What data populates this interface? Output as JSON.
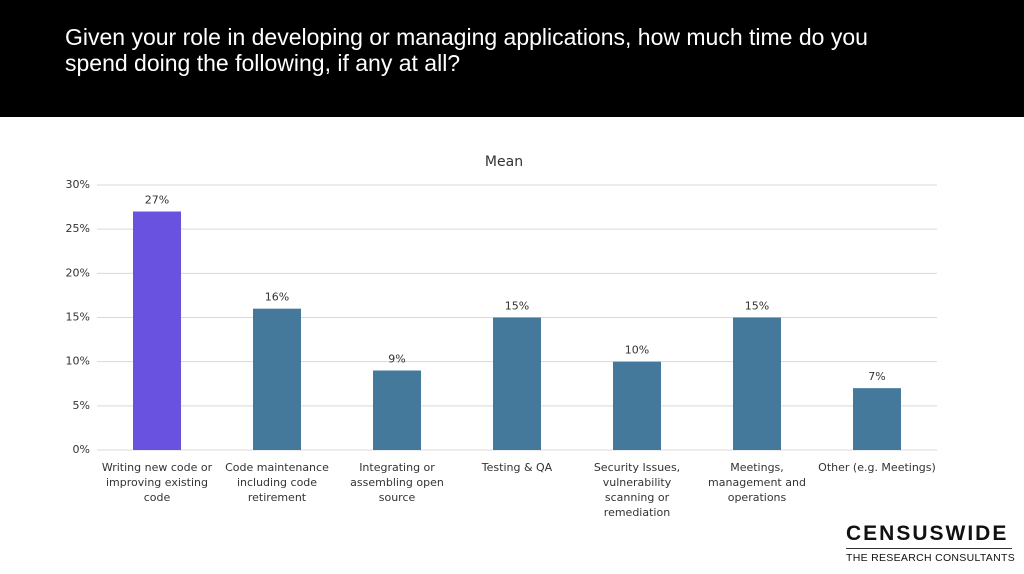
{
  "header": {
    "title": "Given your role in developing or managing applications, how much time do you spend doing the following, if any at all?"
  },
  "chart_data": {
    "type": "bar",
    "title": "Mean",
    "categories": [
      "Writing new code or improving existing code",
      "Code maintenance including code retirement",
      "Integrating or assembling open source",
      "Testing & QA",
      "Security Issues, vulnerability scanning or remediation",
      "Meetings, management and operations",
      "Other (e.g. Meetings)"
    ],
    "values": [
      27,
      16,
      9,
      15,
      10,
      15,
      7
    ],
    "value_labels": [
      "27%",
      "16%",
      "9%",
      "15%",
      "10%",
      "15%",
      "7%"
    ],
    "colors": [
      "#6a52e0",
      "#45799c",
      "#45799c",
      "#45799c",
      "#45799c",
      "#45799c",
      "#45799c"
    ],
    "ylim": [
      0,
      30
    ],
    "yticks": [
      {
        "value": 0,
        "label": "0%"
      },
      {
        "value": 5,
        "label": "5%"
      },
      {
        "value": 10,
        "label": "10%"
      },
      {
        "value": 15,
        "label": "15%"
      },
      {
        "value": 20,
        "label": "20%"
      },
      {
        "value": 25,
        "label": "25%"
      },
      {
        "value": 30,
        "label": "30%"
      }
    ],
    "grid": true
  },
  "logo": {
    "name": "CENSUSWIDE",
    "tagline": "THE RESEARCH CONSULTANTS"
  }
}
